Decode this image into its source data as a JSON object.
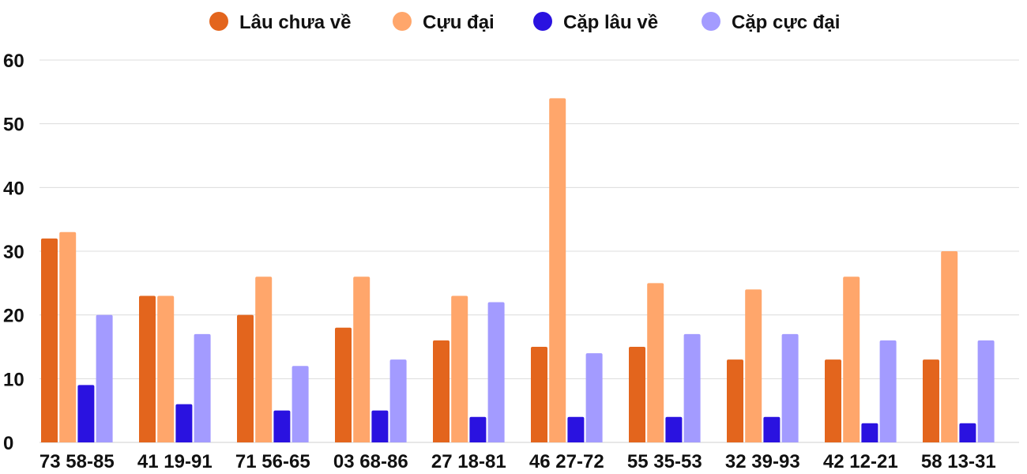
{
  "chart_data": {
    "type": "bar",
    "title": "",
    "xlabel": "",
    "ylabel": "",
    "ylim": [
      0,
      60
    ],
    "yticks": [
      0,
      10,
      20,
      30,
      40,
      50,
      60
    ],
    "grid": true,
    "legend_position": "top-center",
    "categories": [
      "73 58-85",
      "41 19-91",
      "71 56-65",
      "03 68-86",
      "27 18-81",
      "46 27-72",
      "55 35-53",
      "32 39-93",
      "42 12-21",
      "58 13-31"
    ],
    "series": [
      {
        "name": "Lâu chưa về",
        "color": "#e3651d",
        "values": [
          32,
          23,
          20,
          18,
          16,
          15,
          15,
          13,
          13,
          13
        ]
      },
      {
        "name": "Cựu đại",
        "color": "#ffa66b",
        "values": [
          33,
          23,
          26,
          26,
          23,
          54,
          25,
          24,
          26,
          30
        ]
      },
      {
        "name": "Cặp lâu về",
        "color": "#2a12e0",
        "values": [
          9,
          6,
          5,
          5,
          4,
          4,
          4,
          4,
          3,
          3
        ]
      },
      {
        "name": "Cặp cực đại",
        "color": "#a39bff",
        "values": [
          20,
          17,
          12,
          13,
          22,
          14,
          17,
          17,
          16,
          16
        ]
      }
    ]
  }
}
